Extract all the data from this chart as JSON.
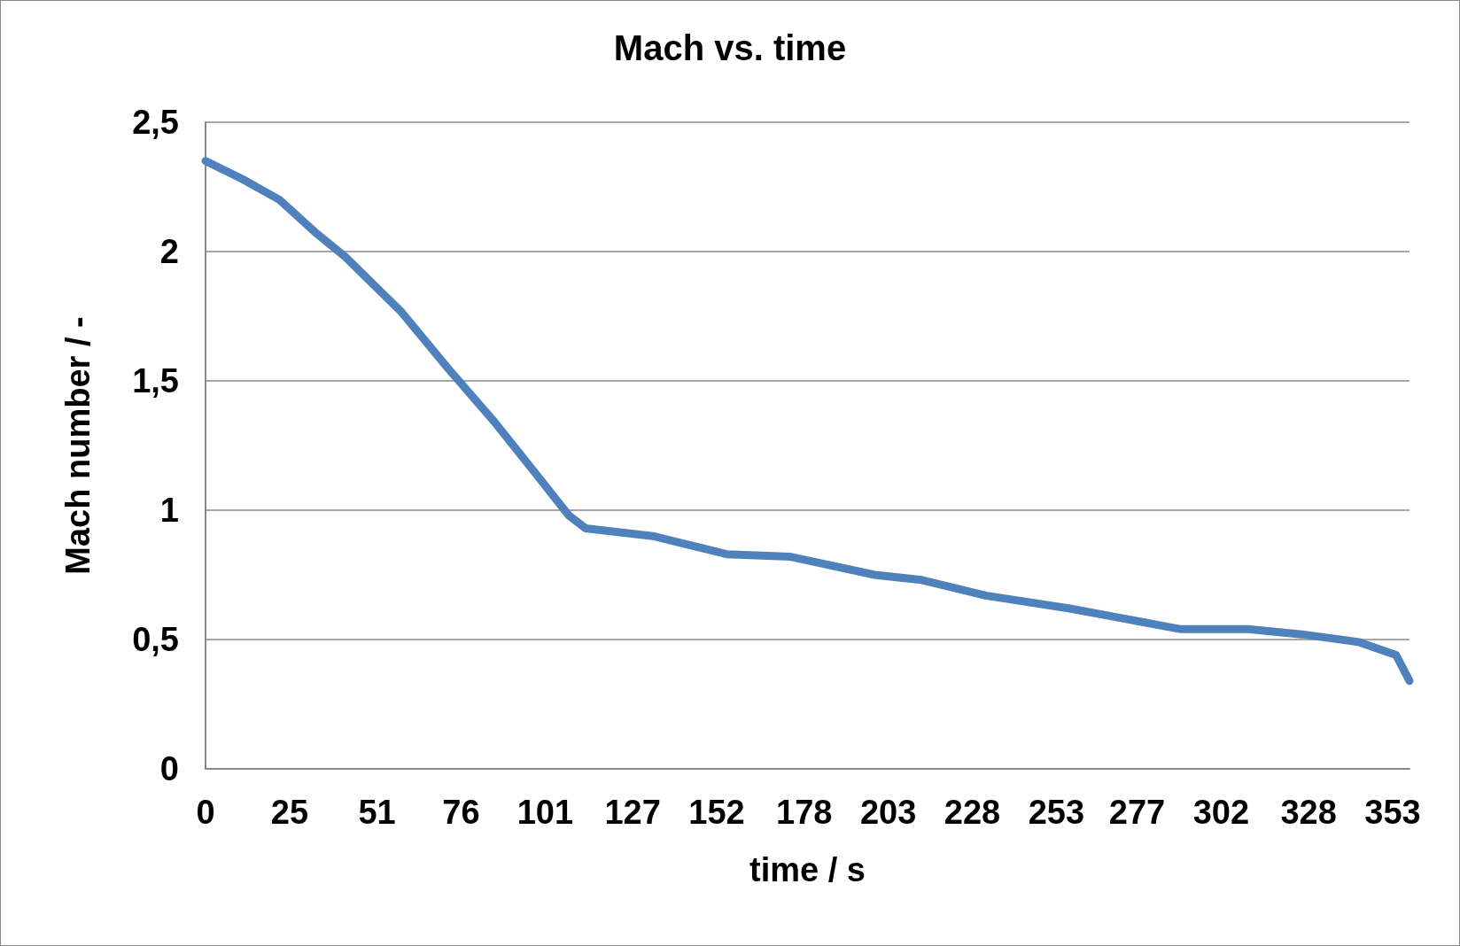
{
  "chart_data": {
    "type": "line",
    "title": "Mach vs. time",
    "xlabel": "time / s",
    "ylabel": "Mach number / -",
    "x": [
      0,
      11,
      22,
      33,
      41.5,
      58,
      72,
      86,
      99.5,
      108,
      113,
      133,
      155,
      174,
      199,
      213,
      232,
      257,
      290,
      310,
      326,
      343,
      354,
      358
    ],
    "series": [
      {
        "color": "#4f81bd",
        "values": [
          2.35,
          2.28,
          2.2,
          2.07,
          1.98,
          1.77,
          1.55,
          1.34,
          1.12,
          0.98,
          0.93,
          0.9,
          0.83,
          0.82,
          0.75,
          0.73,
          0.67,
          0.62,
          0.54,
          0.54,
          0.52,
          0.49,
          0.44,
          0.34
        ]
      }
    ],
    "xlim": [
      0,
      358
    ],
    "xticks": [
      0,
      25,
      51,
      76,
      101,
      127,
      152,
      178,
      203,
      228,
      253,
      277,
      302,
      328,
      353
    ],
    "ylim": [
      0,
      2.5
    ],
    "yticks": [
      {
        "value": 0,
        "label": "0"
      },
      {
        "value": 0.5,
        "label": "0,5"
      },
      {
        "value": 1,
        "label": "1"
      },
      {
        "value": 1.5,
        "label": "1,5"
      },
      {
        "value": 2,
        "label": "2"
      },
      {
        "value": 2.5,
        "label": "2,5"
      }
    ],
    "grid": "y",
    "marker": "none",
    "line_style": "solid"
  }
}
